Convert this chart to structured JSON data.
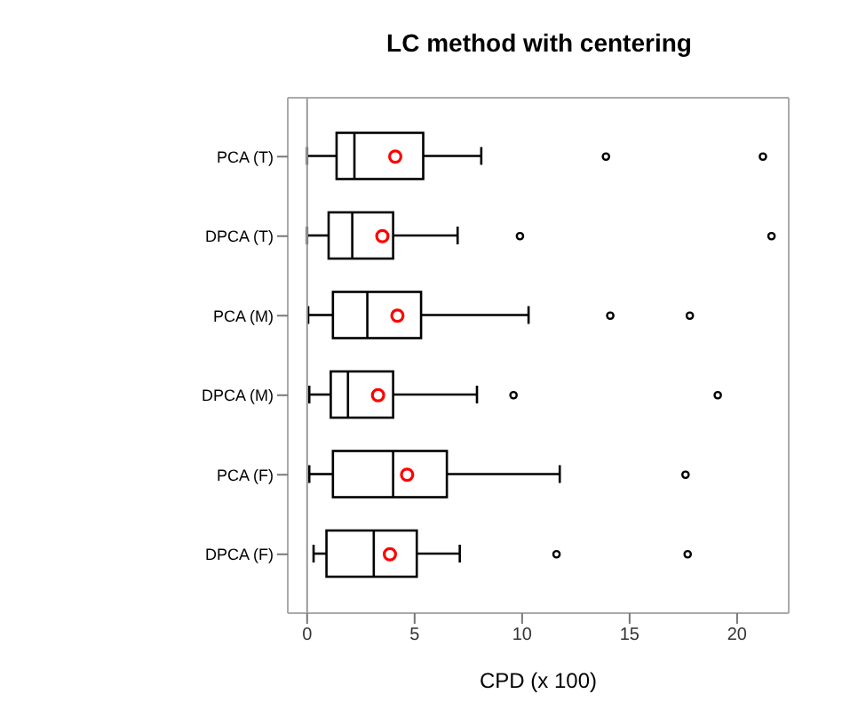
{
  "chart_data": {
    "type": "box",
    "title": "LC method with centering",
    "xlabel": "CPD (x 100)",
    "orientation": "horizontal",
    "categories": [
      "PCA (T)",
      "DPCA (T)",
      "PCA (M)",
      "DPCA (M)",
      "PCA (F)",
      "DPCA (F)"
    ],
    "boxes": [
      {
        "low": 0,
        "q1": 1.37,
        "median": 2.2,
        "q3": 5.4,
        "high": 8.1,
        "mean": 4.1,
        "outliers": [
          13.9,
          21.2
        ]
      },
      {
        "low": 0,
        "q1": 1.0,
        "median": 2.1,
        "q3": 4.0,
        "high": 7.0,
        "mean": 3.5,
        "outliers": [
          9.9,
          21.6
        ]
      },
      {
        "low": 0.05,
        "q1": 1.2,
        "median": 2.8,
        "q3": 5.3,
        "high": 10.3,
        "mean": 4.2,
        "outliers": [
          14.1,
          17.8
        ]
      },
      {
        "low": 0.1,
        "q1": 1.1,
        "median": 1.9,
        "q3": 4.0,
        "high": 7.9,
        "mean": 3.3,
        "outliers": [
          9.6,
          19.1
        ]
      },
      {
        "low": 0.1,
        "q1": 1.2,
        "median": 4.0,
        "q3": 6.5,
        "high": 11.75,
        "mean": 4.65,
        "outliers": [
          17.6
        ]
      },
      {
        "low": 0.3,
        "q1": 0.9,
        "median": 3.1,
        "q3": 5.1,
        "high": 7.1,
        "mean": 3.85,
        "outliers": [
          11.6,
          17.7
        ]
      }
    ],
    "color": "#000000",
    "xlim": [
      -0.9,
      22.4
    ],
    "xticks": [
      0,
      5,
      10,
      15,
      20
    ],
    "ref_lines": [
      {
        "axis": "x",
        "value": 0,
        "color": "#999999"
      }
    ]
  }
}
